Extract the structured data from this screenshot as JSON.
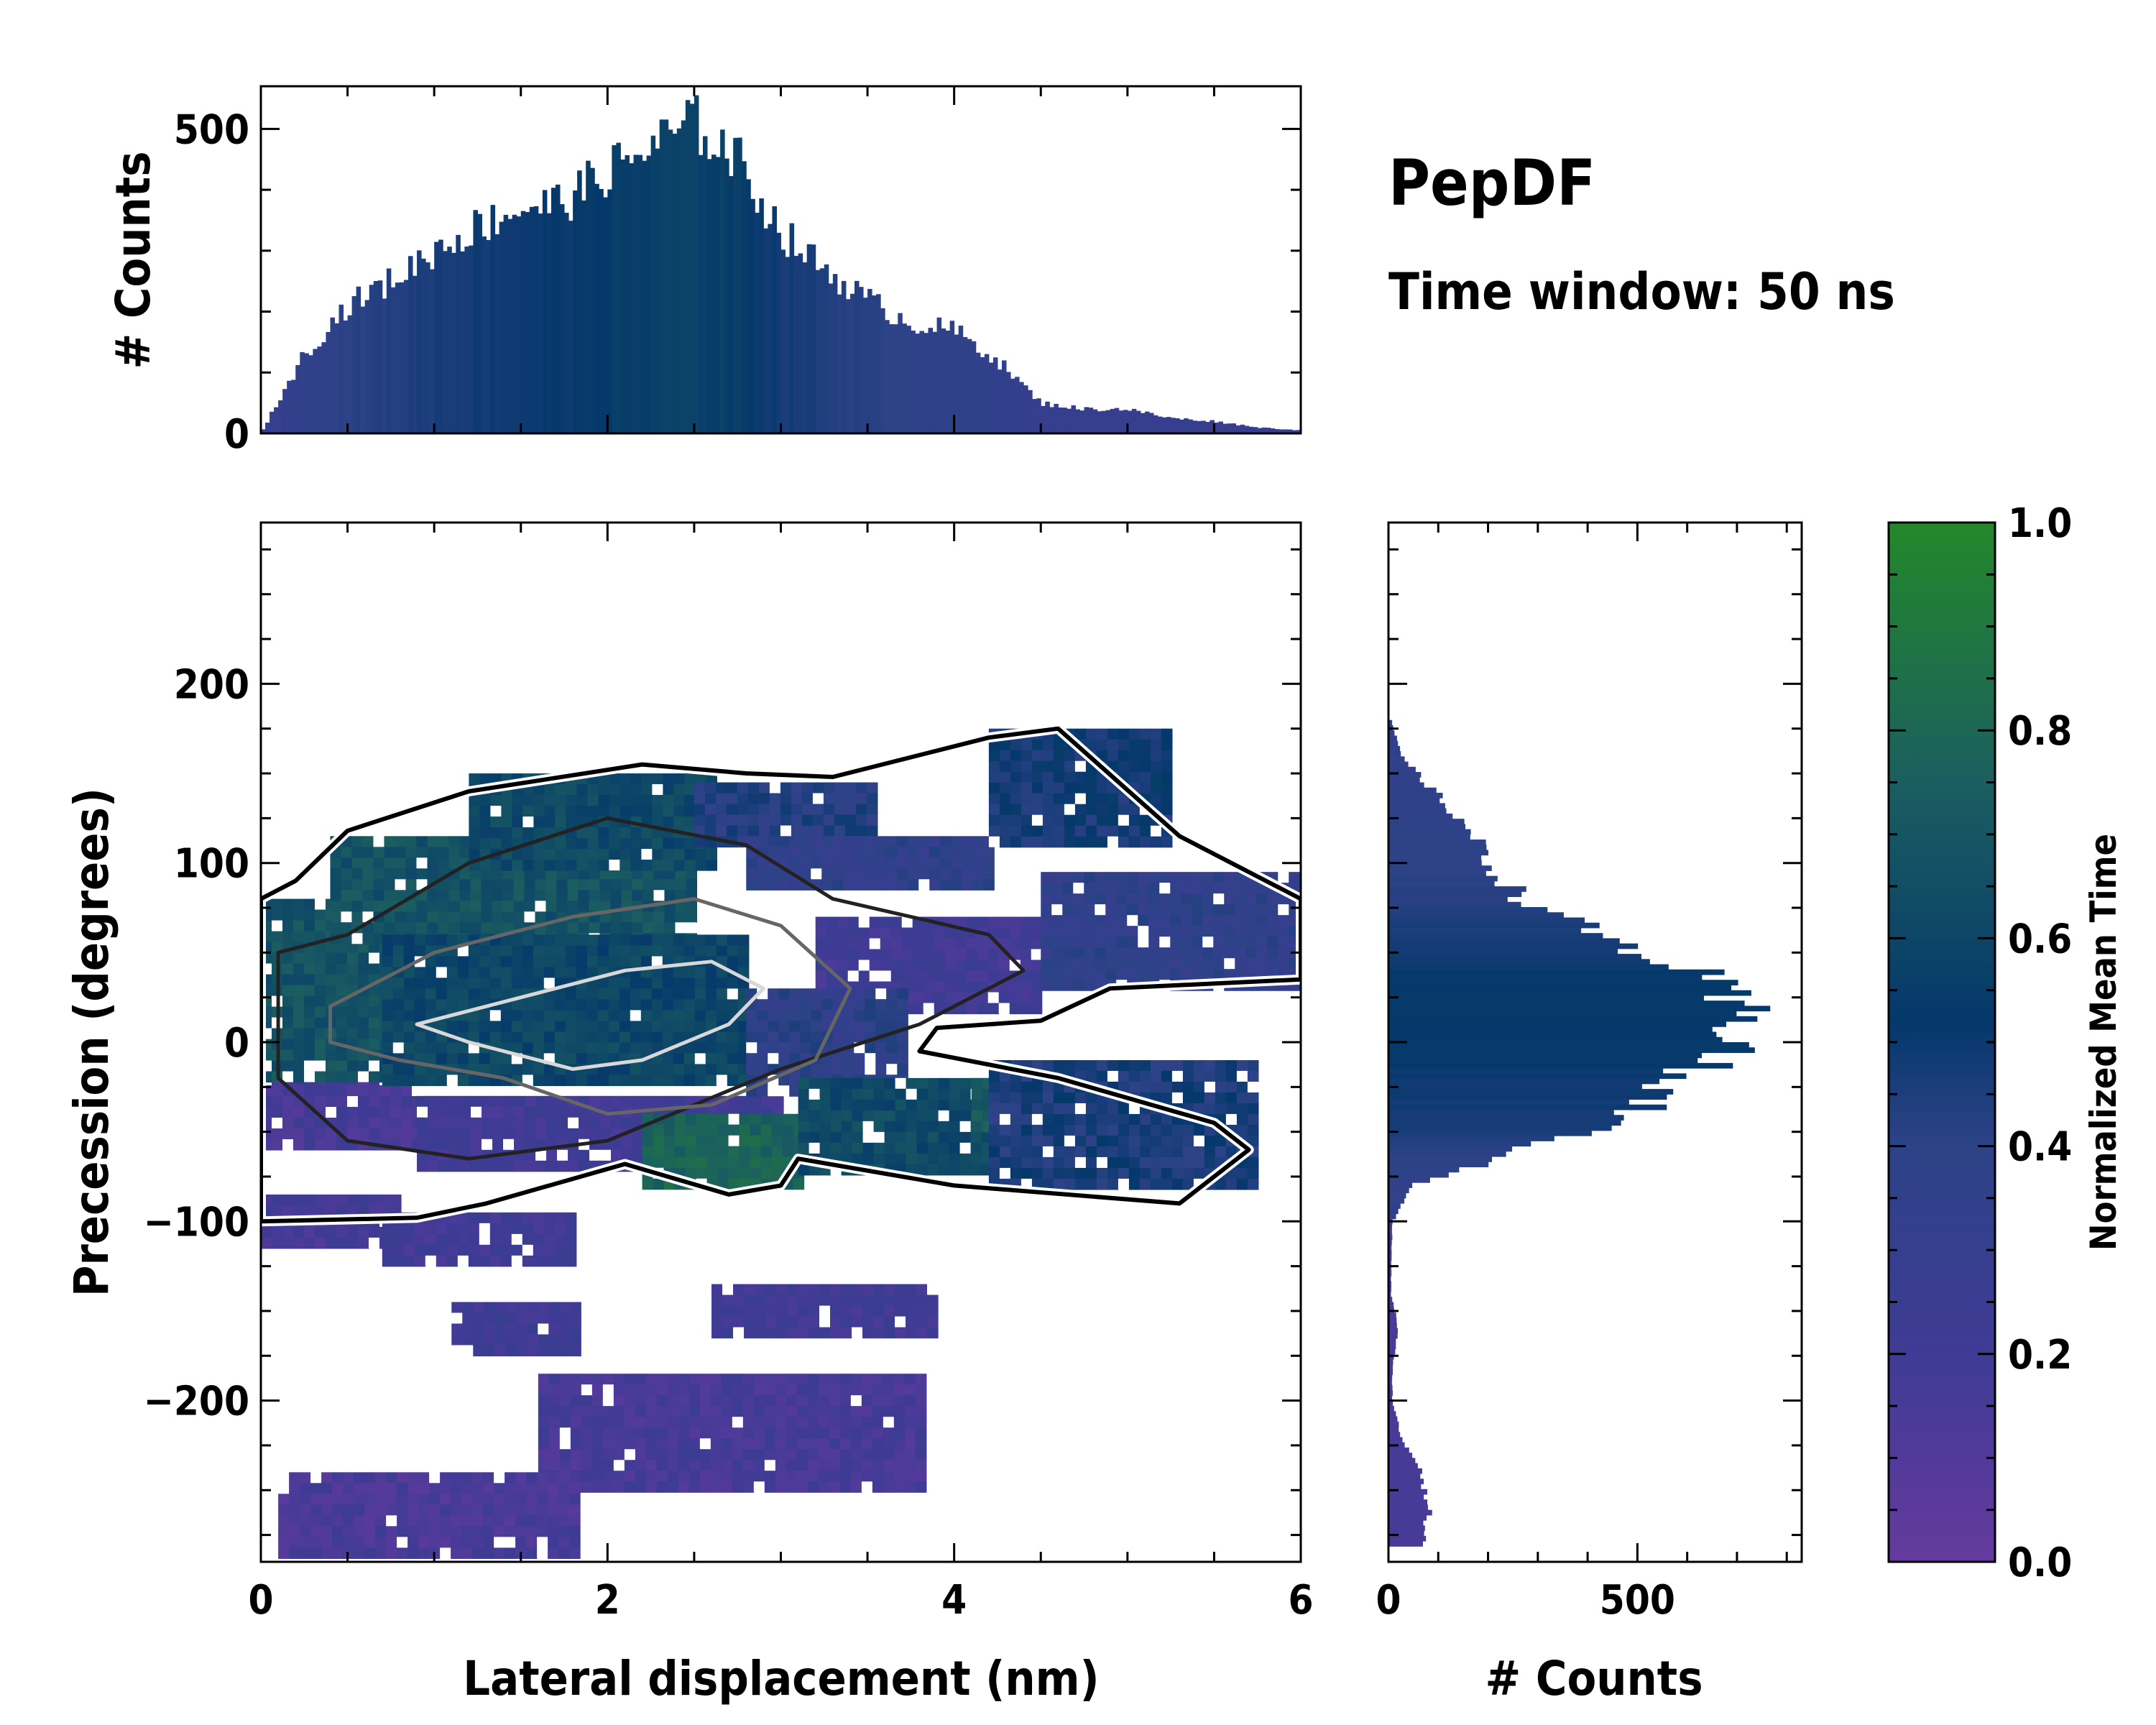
{
  "chart_data": {
    "type": "heatmap",
    "title": "PepDF",
    "subtitle": "Time window: 50 ns",
    "xlabel": "Lateral displacement (nm)",
    "ylabel": "Precession (degrees)",
    "xlim": [
      0,
      6
    ],
    "ylim": [
      -290,
      290
    ],
    "x_ticks": [
      0,
      2,
      4,
      6
    ],
    "x_tick_labels": [
      "0",
      "2",
      "4",
      "6"
    ],
    "y_ticks": [
      200,
      100,
      0,
      -100,
      -200
    ],
    "y_tick_labels": [
      "200",
      "100",
      "0",
      "−100",
      "−200"
    ],
    "colorbar": {
      "label": "Normalized Mean Time",
      "range": [
        0,
        1
      ],
      "ticks": [
        0.0,
        0.2,
        0.4,
        0.6,
        0.8,
        1.0
      ],
      "tick_labels": [
        "0.0",
        "0.2",
        "0.4",
        "0.6",
        "0.8",
        "1.0"
      ],
      "colors": [
        "#653a9e",
        "#3f3b95",
        "#2d4287",
        "#05386b",
        "#1b5e60",
        "#23882a"
      ]
    },
    "regions": [
      {
        "x": [
          0.0,
          0.8
        ],
        "y": [
          -110,
          -85
        ],
        "t": 0.18
      },
      {
        "x": [
          0.0,
          0.9
        ],
        "y": [
          -60,
          0
        ],
        "t": 0.16
      },
      {
        "x": [
          0.9,
          3.0
        ],
        "y": [
          -70,
          -30
        ],
        "t": 0.2
      },
      {
        "x": [
          0.0,
          0.7
        ],
        "y": [
          -20,
          80
        ],
        "t": 0.68
      },
      {
        "x": [
          0.4,
          2.5
        ],
        "y": [
          60,
          115
        ],
        "t": 0.68
      },
      {
        "x": [
          0.7,
          2.8
        ],
        "y": [
          -20,
          60
        ],
        "t": 0.6
      },
      {
        "x": [
          1.2,
          2.6
        ],
        "y": [
          100,
          150
        ],
        "t": 0.62
      },
      {
        "x": [
          2.5,
          3.5
        ],
        "y": [
          110,
          145
        ],
        "t": 0.42
      },
      {
        "x": [
          2.8,
          4.2
        ],
        "y": [
          85,
          115
        ],
        "t": 0.36
      },
      {
        "x": [
          3.2,
          4.5
        ],
        "y": [
          20,
          70
        ],
        "t": 0.2
      },
      {
        "x": [
          2.8,
          3.7
        ],
        "y": [
          -30,
          30
        ],
        "t": 0.38
      },
      {
        "x": [
          2.2,
          3.1
        ],
        "y": [
          -80,
          -40
        ],
        "t": 0.78
      },
      {
        "x": [
          3.1,
          4.6
        ],
        "y": [
          -70,
          -20
        ],
        "t": 0.62
      },
      {
        "x": [
          4.1,
          4.6
        ],
        "y": [
          -50,
          -20
        ],
        "t": 0.74
      },
      {
        "x": [
          4.2,
          5.7
        ],
        "y": [
          -80,
          -10
        ],
        "t": 0.46
      },
      {
        "x": [
          4.2,
          5.2
        ],
        "y": [
          110,
          175
        ],
        "t": 0.48
      },
      {
        "x": [
          4.5,
          6.0
        ],
        "y": [
          30,
          95
        ],
        "t": 0.36
      },
      {
        "x": [
          0.7,
          1.8
        ],
        "y": [
          -125,
          -95
        ],
        "t": 0.2
      },
      {
        "x": [
          1.1,
          1.8
        ],
        "y": [
          -170,
          -145
        ],
        "t": 0.22
      },
      {
        "x": [
          2.6,
          3.9
        ],
        "y": [
          -165,
          -135
        ],
        "t": 0.2
      },
      {
        "x": [
          1.6,
          3.8
        ],
        "y": [
          -250,
          -185
        ],
        "t": 0.16
      },
      {
        "x": [
          0.1,
          1.8
        ],
        "y": [
          -285,
          -240
        ],
        "t": 0.14
      }
    ],
    "contours": [
      {
        "level": "outer",
        "x": [
          0.0,
          0.2,
          0.5,
          1.2,
          2.2,
          2.8,
          3.3,
          4.2,
          4.6,
          5.3,
          6.0,
          6.0,
          4.9,
          4.5,
          3.9,
          3.8,
          4.6,
          5.5,
          5.7,
          5.3,
          4.0,
          3.1,
          3.0,
          2.7,
          2.1,
          1.3,
          0.9,
          0.0,
          0.0
        ],
        "y": [
          80,
          90,
          118,
          140,
          155,
          150,
          148,
          170,
          175,
          115,
          80,
          35,
          30,
          12,
          8,
          -5,
          -20,
          -45,
          -60,
          -90,
          -80,
          -65,
          -80,
          -85,
          -68,
          -90,
          -98,
          -100,
          80
        ]
      },
      {
        "level": "mid",
        "x": [
          0.1,
          0.5,
          1.2,
          2.0,
          2.8,
          3.3,
          4.2,
          4.4,
          3.8,
          3.0,
          2.0,
          1.2,
          0.5,
          0.1,
          0.1
        ],
        "y": [
          50,
          60,
          100,
          125,
          110,
          80,
          60,
          40,
          10,
          -15,
          -55,
          -65,
          -55,
          -20,
          50
        ]
      },
      {
        "level": "inner",
        "x": [
          0.4,
          1.0,
          1.8,
          2.5,
          3.0,
          3.4,
          3.2,
          2.6,
          2.0,
          1.4,
          0.8,
          0.4,
          0.4
        ],
        "y": [
          20,
          50,
          70,
          80,
          65,
          30,
          -10,
          -35,
          -40,
          -20,
          -10,
          0,
          20
        ]
      },
      {
        "level": "core",
        "x": [
          0.9,
          1.5,
          2.1,
          2.6,
          2.9,
          2.7,
          2.2,
          1.8,
          1.2,
          0.9
        ],
        "y": [
          10,
          25,
          40,
          45,
          30,
          10,
          -10,
          -15,
          0,
          10
        ]
      }
    ],
    "top_histogram": {
      "ylabel": "# Counts",
      "ylim": [
        0,
        570
      ],
      "y_ticks": [
        0,
        500
      ],
      "y_tick_labels": [
        "0",
        "500"
      ],
      "x": [
        0.0,
        0.25,
        0.5,
        0.75,
        1.0,
        1.25,
        1.5,
        1.75,
        2.0,
        2.25,
        2.5,
        2.75,
        3.0,
        3.25,
        3.5,
        3.75,
        4.0,
        4.25,
        4.5,
        4.75,
        5.0,
        5.25,
        5.5,
        5.75,
        6.0
      ],
      "values": [
        0,
        130,
        210,
        250,
        300,
        340,
        370,
        380,
        430,
        470,
        510,
        450,
        330,
        270,
        220,
        180,
        170,
        120,
        50,
        40,
        40,
        25,
        20,
        10,
        5
      ]
    },
    "right_histogram": {
      "xlabel": "# Counts",
      "xlim": [
        0,
        830
      ],
      "x_ticks": [
        0,
        500
      ],
      "x_tick_labels": [
        "0",
        "500"
      ],
      "y": [
        180,
        160,
        140,
        120,
        100,
        80,
        60,
        40,
        20,
        0,
        -20,
        -40,
        -60,
        -80,
        -100,
        -120,
        -140,
        -160,
        -180,
        -200,
        -220,
        -240,
        -260,
        -280
      ],
      "values": [
        5,
        25,
        90,
        160,
        200,
        270,
        420,
        600,
        690,
        730,
        560,
        500,
        270,
        50,
        8,
        6,
        5,
        20,
        8,
        8,
        25,
        70,
        80,
        70
      ]
    }
  }
}
